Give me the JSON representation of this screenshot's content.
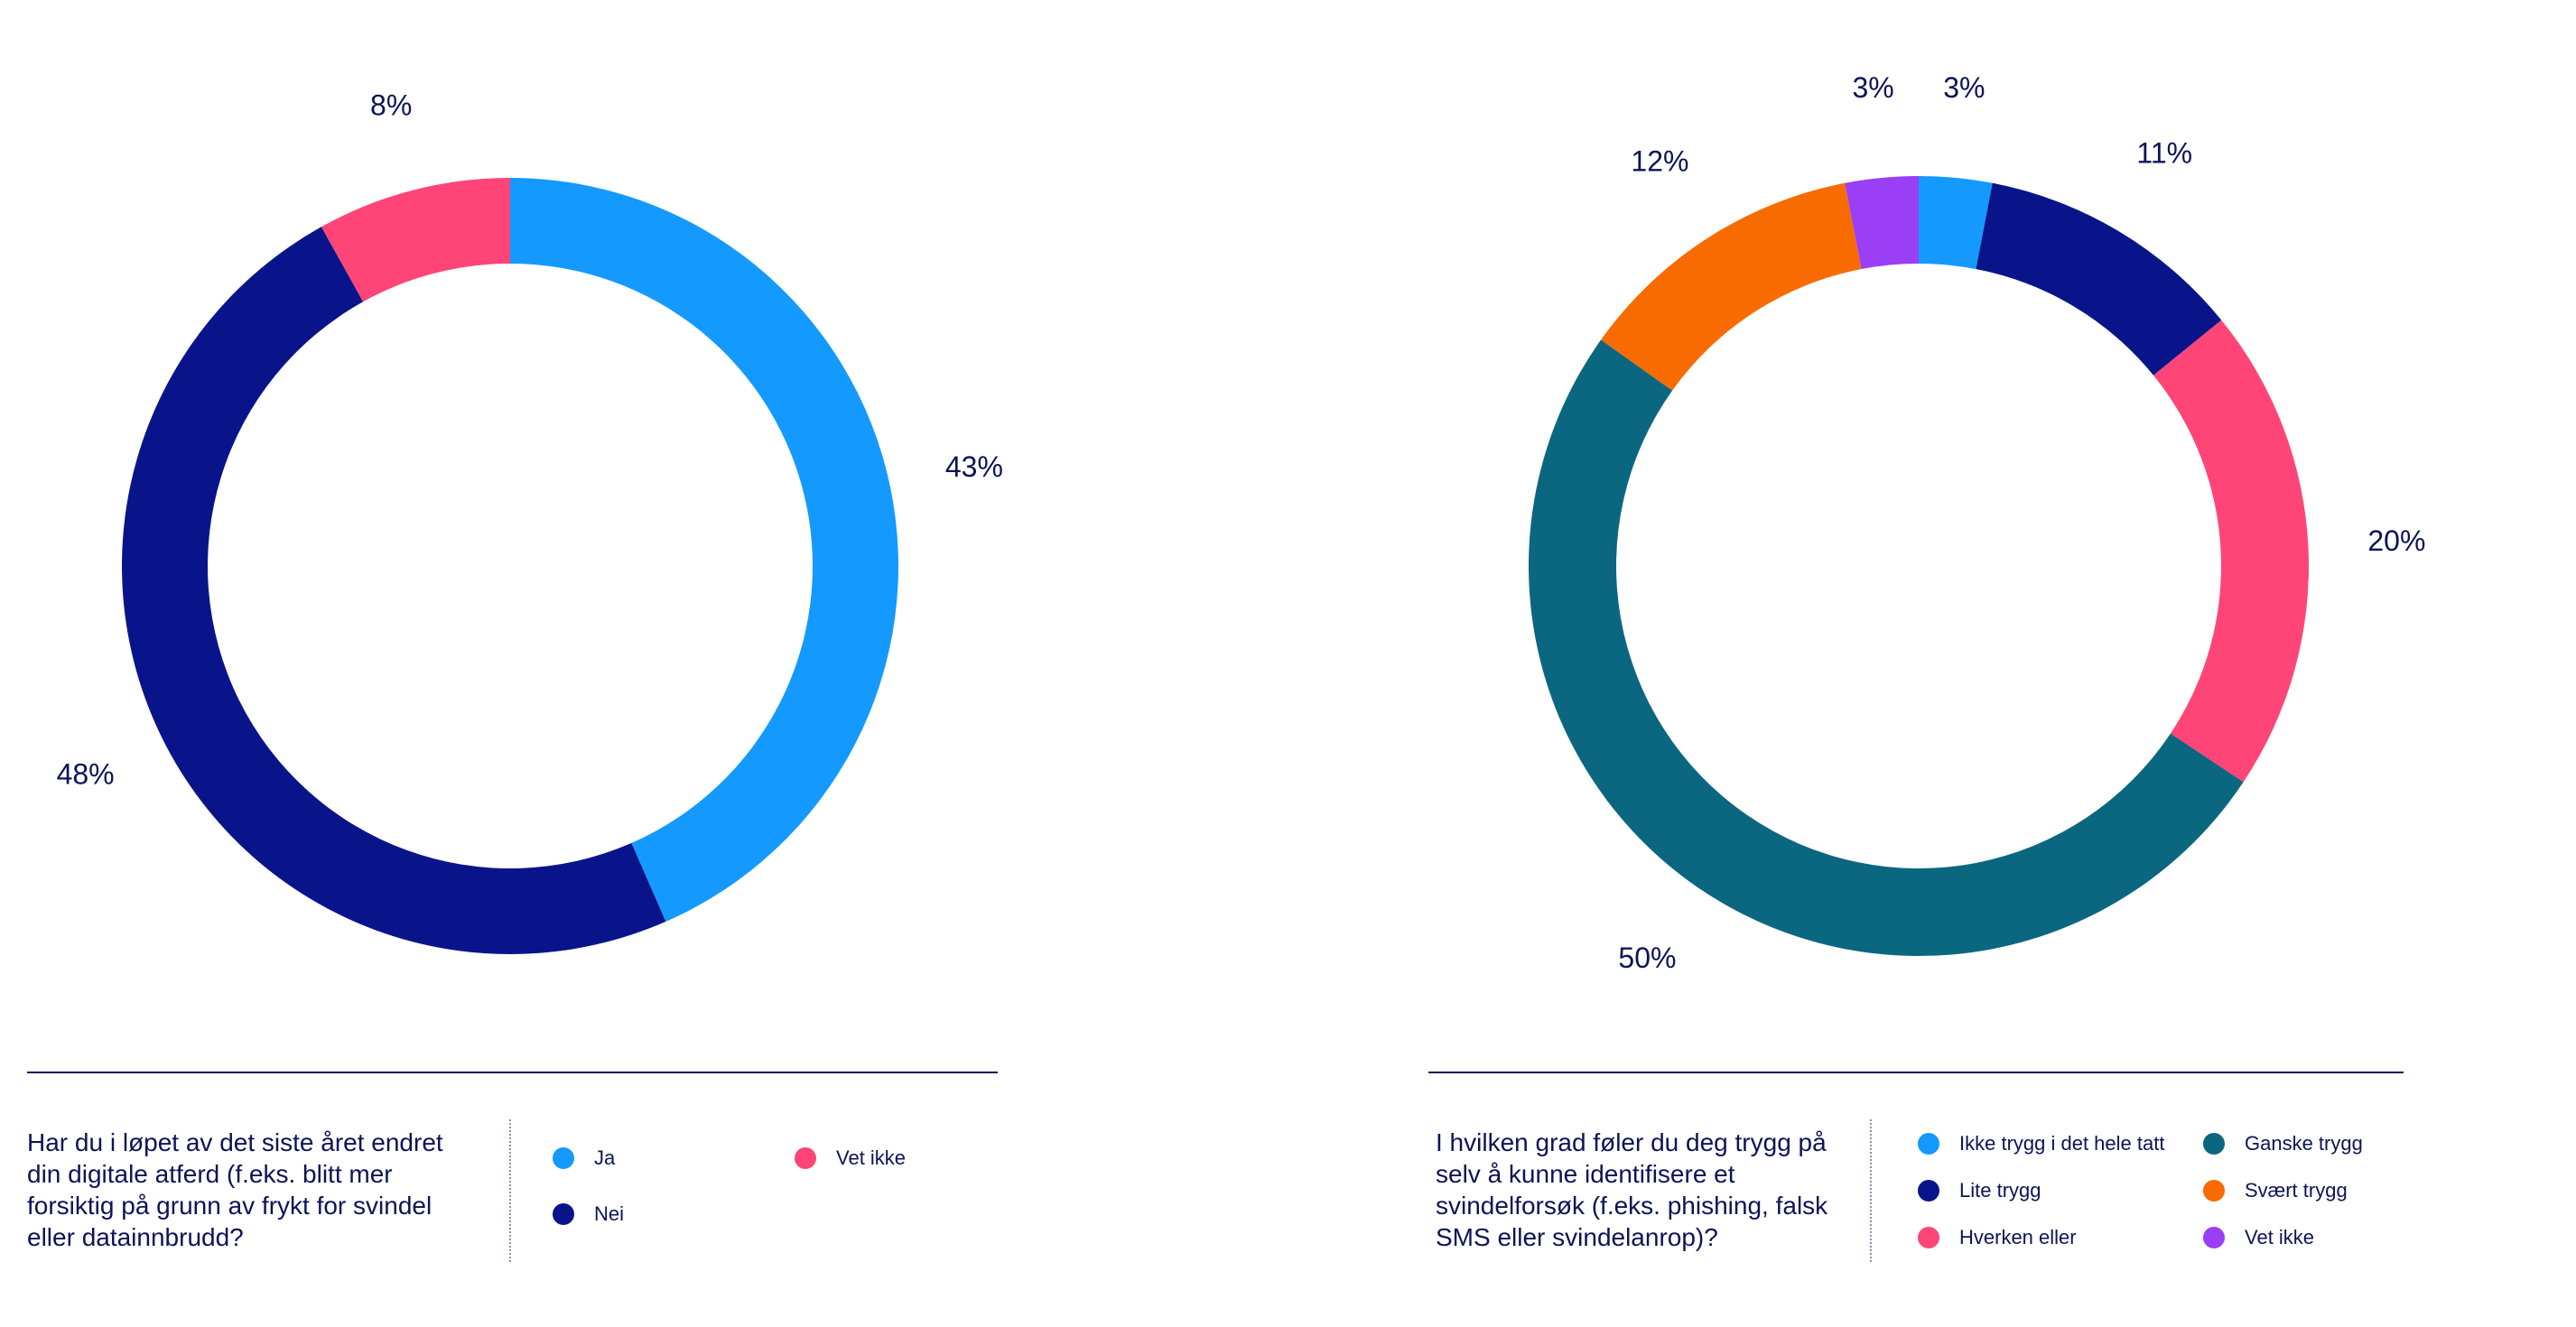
{
  "chart_data": [
    {
      "type": "pie",
      "question": "Har du i løpet av det siste året endret din digitale atferd (f.eks. blitt mer forsiktig på grunn av frykt for svindel eller datainnbrudd?",
      "slices": [
        {
          "label": "Ja",
          "value": 43,
          "display": "43%",
          "color": "#1499ff"
        },
        {
          "label": "Nei",
          "value": 48,
          "display": "48%",
          "color": "#0a148a"
        },
        {
          "label": "Vet ikke",
          "value": 8,
          "display": "8%",
          "color": "#ff4577"
        }
      ]
    },
    {
      "type": "pie",
      "question": "I hvilken grad føler du deg trygg på selv å kunne identifisere et svindelforsøk (f.eks. phishing, falsk SMS eller svindelanrop)?",
      "slices": [
        {
          "label": "Ikke trygg i det hele tatt",
          "value": 3,
          "display": "3%",
          "color": "#1499ff"
        },
        {
          "label": "Lite trygg",
          "value": 11,
          "display": "11%",
          "color": "#0a148a"
        },
        {
          "label": "Hverken eller",
          "value": 20,
          "display": "20%",
          "color": "#ff4577"
        },
        {
          "label": "Ganske trygg",
          "value": 50,
          "display": "50%",
          "color": "#0b6680"
        },
        {
          "label": "Svært trygg",
          "value": 12,
          "display": "12%",
          "color": "#f76b00"
        },
        {
          "label": "Vet ikke",
          "value": 3,
          "display": "3%",
          "color": "#9a3ff5"
        }
      ]
    }
  ]
}
